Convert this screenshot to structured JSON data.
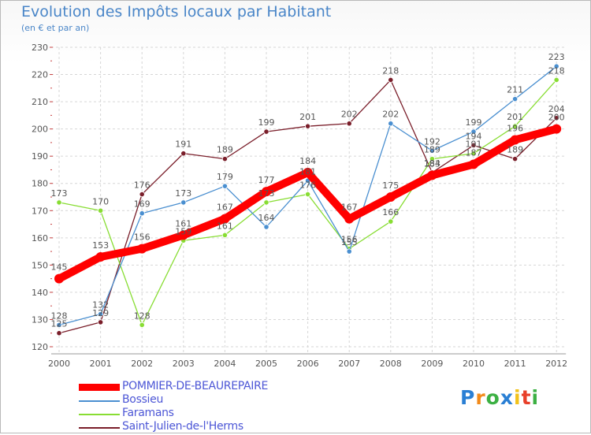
{
  "chart_data": {
    "type": "line",
    "title": "Evolution des Impôts locaux par Habitant",
    "subtitle": "(en € et par an)",
    "xlabel": "",
    "ylabel": "",
    "categories": [
      "2000",
      "2001",
      "2002",
      "2003",
      "2004",
      "2005",
      "2006",
      "2007",
      "2008",
      "2009",
      "2010",
      "2011",
      "2012"
    ],
    "ylim": [
      120,
      230
    ],
    "yticks": [
      120,
      130,
      140,
      150,
      160,
      170,
      180,
      190,
      200,
      210,
      220,
      230
    ],
    "series": [
      {
        "name": "Saint-Julien-de-l'Herms",
        "color": "#7a1e2a",
        "values": [
          125,
          129,
          176,
          191,
          189,
          199,
          201,
          202,
          218,
          184,
          194,
          189,
          204
        ]
      },
      {
        "name": "Faramans",
        "color": "#88dd33",
        "values": [
          173,
          170,
          128,
          159,
          161,
          173,
          176,
          156,
          166,
          189,
          191,
          201,
          218
        ]
      },
      {
        "name": "Bossieu",
        "color": "#4a8fd0",
        "values": [
          128,
          132,
          169,
          173,
          179,
          164,
          181,
          155,
          202,
          192,
          199,
          211,
          223
        ]
      },
      {
        "name": "POMMIER-DE-BEAUREPAIRE",
        "color": "#ff0000",
        "values": [
          145,
          153,
          156,
          161,
          167,
          177,
          184,
          167,
          175,
          183,
          187,
          196,
          200
        ]
      }
    ],
    "legend": [
      "POMMIER-DE-BEAUREPAIRE",
      "Bossieu",
      "Faramans",
      "Saint-Julien-de-l'Herms"
    ],
    "legend_position": "bottom-left",
    "grid": true
  },
  "logo": {
    "letters": [
      "P",
      "r",
      "o",
      "x",
      "i",
      "t",
      "i"
    ],
    "colors": [
      "#2a7fd4",
      "#f28a1a",
      "#3cb043",
      "#2a7fd4",
      "#f2c21a",
      "#e8402a",
      "#3cb043"
    ]
  }
}
